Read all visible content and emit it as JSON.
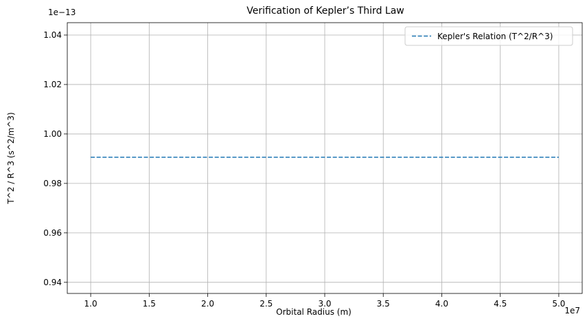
{
  "chart_data": {
    "type": "line",
    "title": "Verification of Kepler’s Third Law",
    "xlabel": "Orbital Radius (m)",
    "ylabel": "T^2 / R^3 (s^2/m^3)",
    "x_offset_text": "1e7",
    "y_offset_text": "1e−13",
    "xlim": [
      8000000.0,
      52000000.0
    ],
    "ylim": [
      9.355e-14,
      1.045e-13
    ],
    "x_ticks": [
      10000000.0,
      15000000.0,
      20000000.0,
      25000000.0,
      30000000.0,
      35000000.0,
      40000000.0,
      45000000.0,
      50000000.0
    ],
    "x_tick_labels": [
      "1.0",
      "1.5",
      "2.0",
      "2.5",
      "3.0",
      "3.5",
      "4.0",
      "4.5",
      "5.0"
    ],
    "y_ticks": [
      9.4e-14,
      9.6e-14,
      9.8e-14,
      1e-13,
      1.02e-13,
      1.04e-13
    ],
    "y_tick_labels": [
      "0.94",
      "0.96",
      "0.98",
      "1.00",
      "1.02",
      "1.04"
    ],
    "grid": true,
    "legend_position": "top-right",
    "series": [
      {
        "name": "Kepler's Relation (T^2/R^3)",
        "color": "#1f77b4",
        "line_style": "dashed",
        "x": [
          10000000.0,
          50000000.0
        ],
        "y": [
          9.906e-14,
          9.906e-14
        ]
      }
    ]
  }
}
